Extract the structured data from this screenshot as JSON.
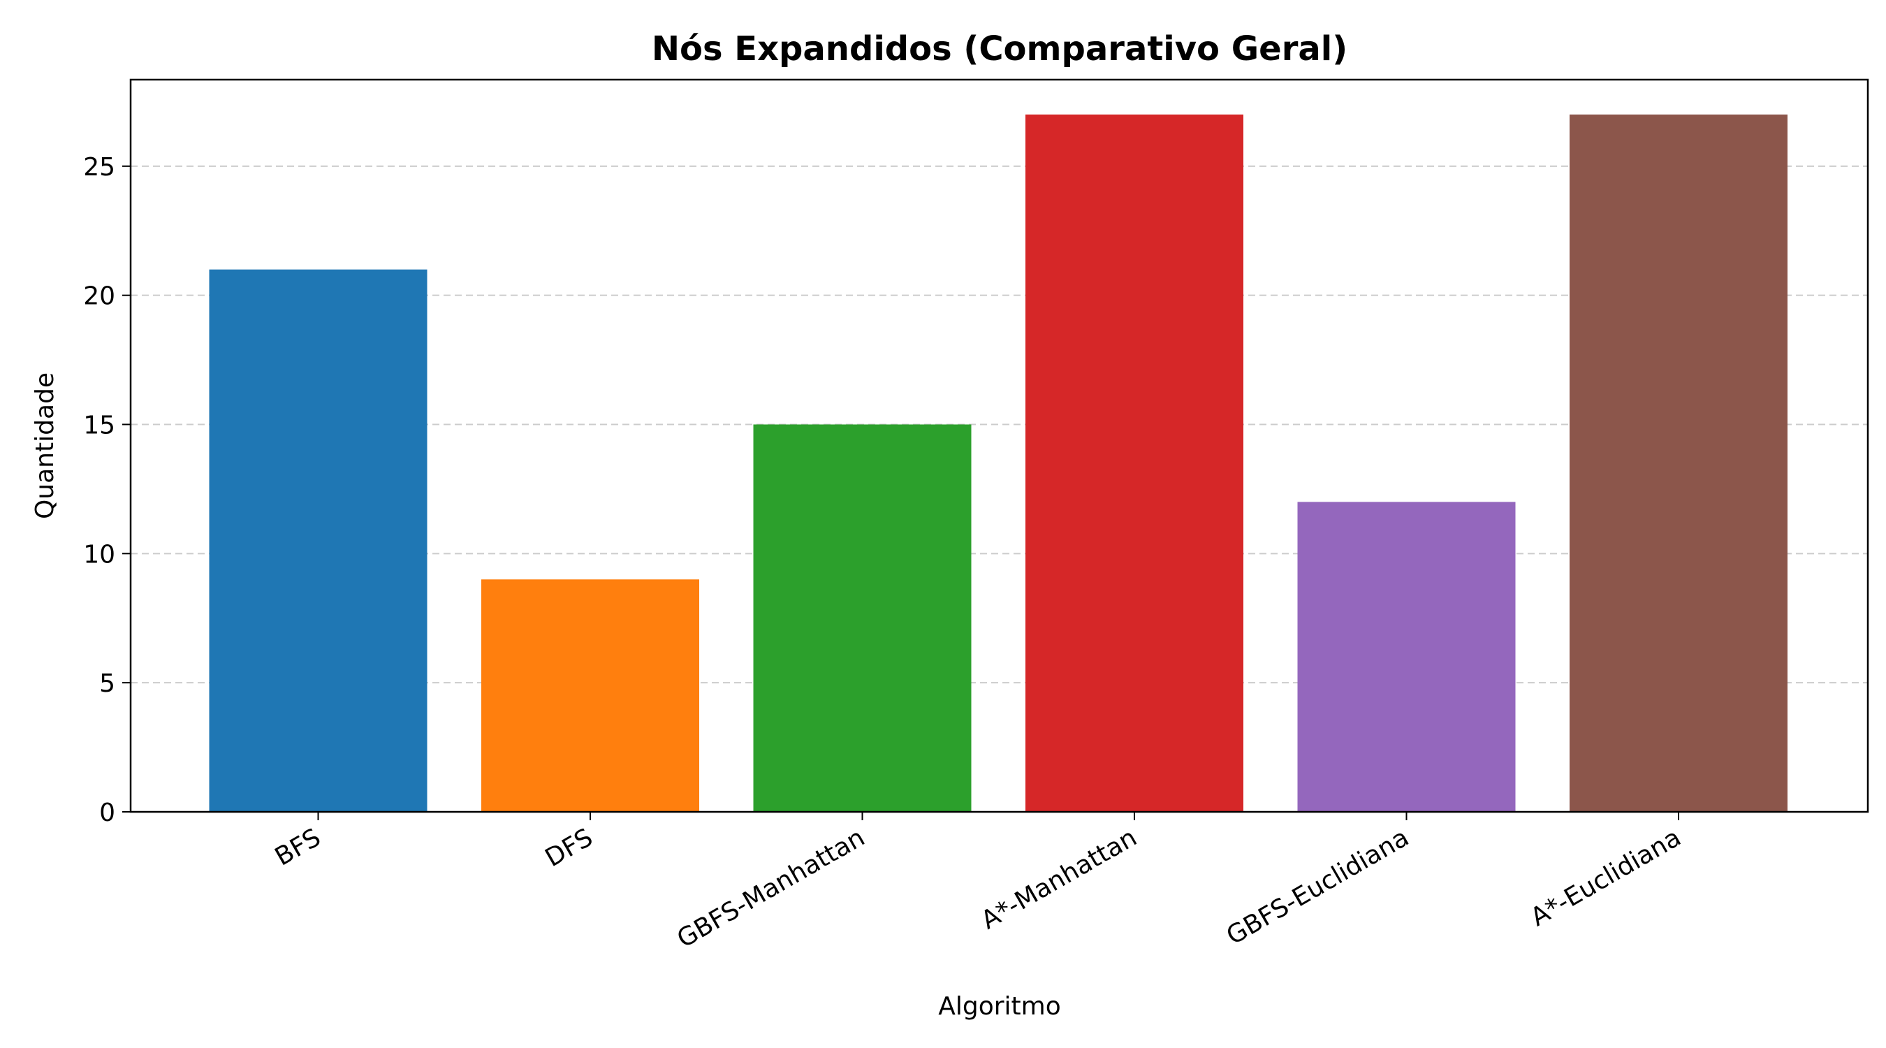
{
  "chart_data": {
    "type": "bar",
    "title": "Nós Expandidos (Comparativo Geral)",
    "xlabel": "Algoritmo",
    "ylabel": "Quantidade",
    "categories": [
      "BFS",
      "DFS",
      "GBFS-Manhattan",
      "A*-Manhattan",
      "GBFS-Euclidiana",
      "A*-Euclidiana"
    ],
    "values": [
      21,
      9,
      15,
      27,
      12,
      27
    ],
    "colors": [
      "#1f77b4",
      "#ff7f0e",
      "#2ca02c",
      "#d62728",
      "#9467bd",
      "#8c564b"
    ],
    "ylim": [
      0,
      28.35
    ],
    "yticks": [
      0,
      5,
      10,
      15,
      20,
      25
    ],
    "grid": "y-dashed"
  }
}
